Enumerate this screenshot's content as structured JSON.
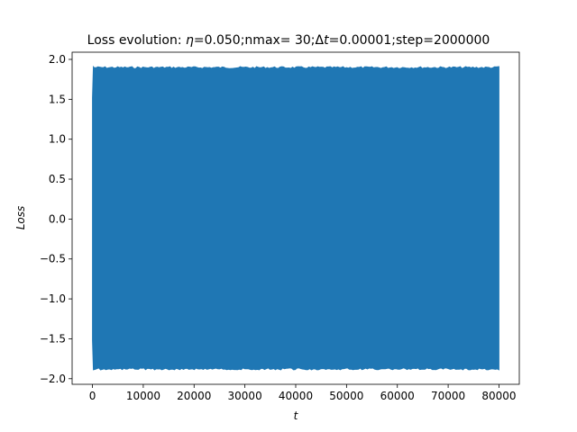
{
  "chart_data": {
    "type": "line",
    "title": "Loss evolution: η=0.050;nmax= 30;Δt=0.00001;step=2000000",
    "title_parts": {
      "prefix": "Loss evolution: ",
      "eta_symbol": "η",
      "eta_text": "=0.050;nmax= 30;",
      "delta": "Δ",
      "t_symbol": "t",
      "rest": "=0.00001;step=2000000"
    },
    "xlabel": "t",
    "ylabel": "Loss",
    "xlim": [
      -4000,
      84000
    ],
    "ylim": [
      -2.07,
      2.09
    ],
    "xticks": [
      0,
      10000,
      20000,
      30000,
      40000,
      50000,
      60000,
      70000,
      80000
    ],
    "xtick_labels": [
      "0",
      "10000",
      "20000",
      "30000",
      "40000",
      "50000",
      "60000",
      "70000",
      "80000"
    ],
    "yticks": [
      -2.0,
      -1.5,
      -1.0,
      -0.5,
      0.0,
      0.5,
      1.0,
      1.5,
      2.0
    ],
    "ytick_labels": [
      "−2.0",
      "−1.5",
      "−1.0",
      "−0.5",
      "0.0",
      "0.5",
      "1.0",
      "1.5",
      "2.0"
    ],
    "grid": false,
    "legend": "none",
    "series": [
      {
        "color": "#1f77b4",
        "x_range": [
          0,
          80000
        ],
        "y_envelope_upper": 1.91,
        "y_envelope_lower": -1.89,
        "y_start_upper": 1.52,
        "y_start_lower": -1.52,
        "description": "dense oscillation filling band"
      }
    ]
  }
}
